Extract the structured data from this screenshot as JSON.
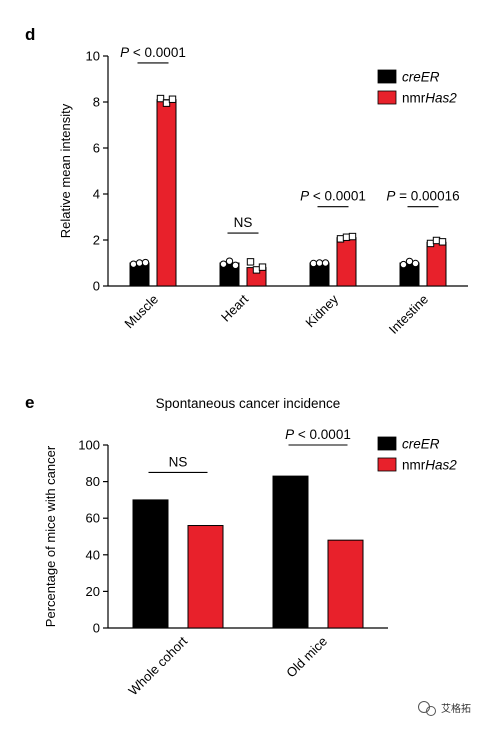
{
  "watermark": {
    "text": "艾格拓"
  },
  "colors": {
    "creER": "#000000",
    "nmrHas2": "#e8212b",
    "point_fill": "#ffffff"
  },
  "chart_data": [
    {
      "panel": "d",
      "type": "bar",
      "title": "",
      "xlabel": "",
      "ylabel": "Relative mean intensity",
      "ylim": [
        0,
        10
      ],
      "yticks": [
        0,
        2,
        4,
        6,
        8,
        10
      ],
      "categories": [
        "Muscle",
        "Heart",
        "Kidney",
        "Intestine"
      ],
      "legend_position": "top-right",
      "series": [
        {
          "name": "creER",
          "name_parts": [
            {
              "t": "cre",
              "i": true
            },
            {
              "t": "ER",
              "i": true
            }
          ],
          "values": [
            1.0,
            1.0,
            1.0,
            1.0
          ],
          "points": [
            [
              0.95,
              1.0,
              1.02
            ],
            [
              0.95,
              1.08,
              0.9
            ],
            [
              0.98,
              1.0,
              1.0
            ],
            [
              0.93,
              1.07,
              0.98
            ]
          ]
        },
        {
          "name": "nmrHas2",
          "name_parts": [
            {
              "t": "nmr",
              "i": false
            },
            {
              "t": "Has2",
              "i": true
            }
          ],
          "values": [
            8.1,
            0.8,
            2.1,
            1.9
          ],
          "points": [
            [
              8.15,
              7.95,
              8.12
            ],
            [
              1.05,
              0.7,
              0.82
            ],
            [
              2.05,
              2.12,
              2.15
            ],
            [
              1.85,
              1.98,
              1.92
            ]
          ]
        }
      ],
      "annotations": [
        {
          "category": "Muscle",
          "parts": [
            {
              "t": "P",
              "i": true
            },
            {
              "t": " < 0.0001",
              "i": false
            }
          ],
          "y": 9.7
        },
        {
          "category": "Heart",
          "parts": [
            {
              "t": "NS",
              "i": false
            }
          ],
          "y": 2.3
        },
        {
          "category": "Kidney",
          "parts": [
            {
              "t": "P",
              "i": true
            },
            {
              "t": " < 0.0001",
              "i": false
            }
          ],
          "y": 3.45
        },
        {
          "category": "Intestine",
          "parts": [
            {
              "t": "P",
              "i": true
            },
            {
              "t": " = 0.00016",
              "i": false
            }
          ],
          "y": 3.45
        }
      ]
    },
    {
      "panel": "e",
      "type": "bar",
      "title": "Spontaneous cancer incidence",
      "xlabel": "",
      "ylabel": "Percentage of mice with cancer",
      "ylim": [
        0,
        100
      ],
      "yticks": [
        0,
        20,
        40,
        60,
        80,
        100
      ],
      "categories": [
        "Whole cohort",
        "Old mice"
      ],
      "legend_position": "top-right",
      "series": [
        {
          "name": "creER",
          "name_parts": [
            {
              "t": "cre",
              "i": true
            },
            {
              "t": "ER",
              "i": true
            }
          ],
          "values": [
            70,
            83
          ]
        },
        {
          "name": "nmrHas2",
          "name_parts": [
            {
              "t": "nmr",
              "i": false
            },
            {
              "t": "Has2",
              "i": true
            }
          ],
          "values": [
            56,
            48
          ]
        }
      ],
      "annotations": [
        {
          "category": "Whole cohort",
          "parts": [
            {
              "t": "NS",
              "i": false
            }
          ],
          "y": 85
        },
        {
          "category": "Old mice",
          "parts": [
            {
              "t": "P",
              "i": true
            },
            {
              "t": " < 0.0001",
              "i": false
            }
          ],
          "y": 100
        }
      ]
    }
  ]
}
